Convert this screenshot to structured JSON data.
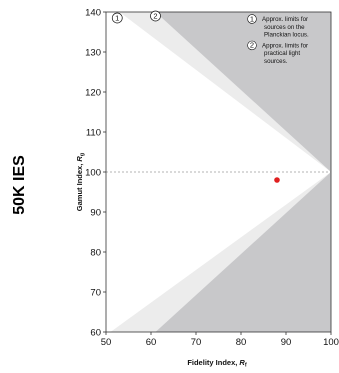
{
  "side_label": "50K IES",
  "chart_data": {
    "type": "scatter",
    "xlabel_main": "Fidelity Index, ",
    "xlabel_sub": "f",
    "ylabel_main": "Gamut Index, ",
    "ylabel_sub": "g",
    "xlim": [
      50,
      100
    ],
    "ylim": [
      60,
      140
    ],
    "xticks": [
      "50",
      "60",
      "70",
      "80",
      "90",
      "100"
    ],
    "yticks": [
      "60",
      "70",
      "80",
      "90",
      "100",
      "110",
      "120",
      "130",
      "140"
    ],
    "reference_line_y": 100,
    "points": [
      {
        "x": 88,
        "y": 98
      }
    ],
    "point_color": "#e02020",
    "regions": {
      "practical_limit_upper_x_at_top": 61,
      "practical_limit_lower_x_at_bottom": 61,
      "planckian_limit_upper_x_at_top": 53,
      "planckian_limit_lower_x_at_bottom": 51
    },
    "region_colors": {
      "outside": "#c8c8ca",
      "between": "#ececec",
      "inside": "#ffffff"
    },
    "legend": [
      {
        "marker": "1",
        "text": [
          "Approx. limits for",
          "sources on the",
          "Planckian locus."
        ]
      },
      {
        "marker": "2",
        "text": [
          "Approx. limits for",
          "practical light",
          "sources."
        ]
      }
    ],
    "region_markers": [
      "1",
      "2"
    ],
    "grid": false
  }
}
